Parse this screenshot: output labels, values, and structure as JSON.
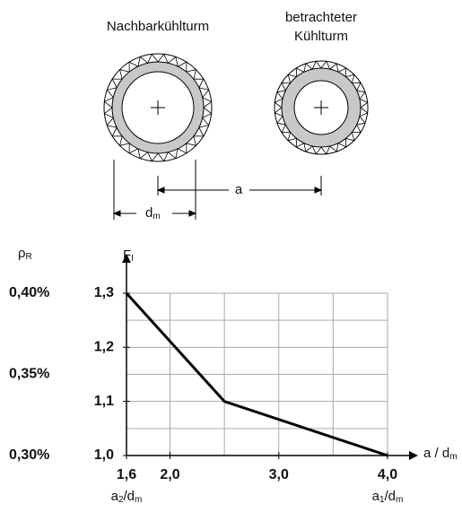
{
  "labels": {
    "neighbor": "Nachbarkühlturm",
    "considered": [
      "betrachteter",
      "Kühlturm"
    ],
    "a": "a",
    "dm": [
      "d",
      "m"
    ]
  },
  "chart_data": {
    "type": "line",
    "x": [
      1.6,
      2.5,
      4.0
    ],
    "values": [
      1.3,
      1.1,
      1.0
    ],
    "color": "#000000",
    "xlim": [
      1.6,
      4.0
    ],
    "ylim": [
      1.0,
      1.3
    ],
    "xticks": [
      {
        "value": 1.6,
        "label": "1,6"
      },
      {
        "value": 2.0,
        "label": "2,0"
      },
      {
        "value": 3.0,
        "label": "3,0"
      },
      {
        "value": 4.0,
        "label": "4,0"
      }
    ],
    "yticks": [
      {
        "value": 1.0,
        "label": "1,0"
      },
      {
        "value": 1.1,
        "label": "1,1"
      },
      {
        "value": 1.2,
        "label": "1,2"
      },
      {
        "value": 1.3,
        "label": "1,3"
      }
    ],
    "xgrid": [
      2.0,
      2.5,
      3.0,
      3.5,
      4.0
    ],
    "ygrid": [
      1.05,
      1.1,
      1.15,
      1.2,
      1.25,
      1.3
    ],
    "y2lim": [
      0.3,
      0.4
    ],
    "y2ticks": [
      {
        "value": 0.3,
        "label": "0,30%"
      },
      {
        "value": 0.35,
        "label": "0,35%"
      },
      {
        "value": 0.4,
        "label": "0,40%"
      }
    ],
    "ylabel": [
      "F",
      "I"
    ],
    "y2label": [
      "ρ",
      "R"
    ],
    "xlabel": [
      "a / d",
      "m"
    ],
    "xnotes": [
      {
        "x": 1.6,
        "parts": [
          "a",
          "2",
          "/d",
          "m"
        ]
      },
      {
        "x": 4.0,
        "parts": [
          "a",
          "1",
          "/d",
          "m"
        ]
      }
    ]
  }
}
